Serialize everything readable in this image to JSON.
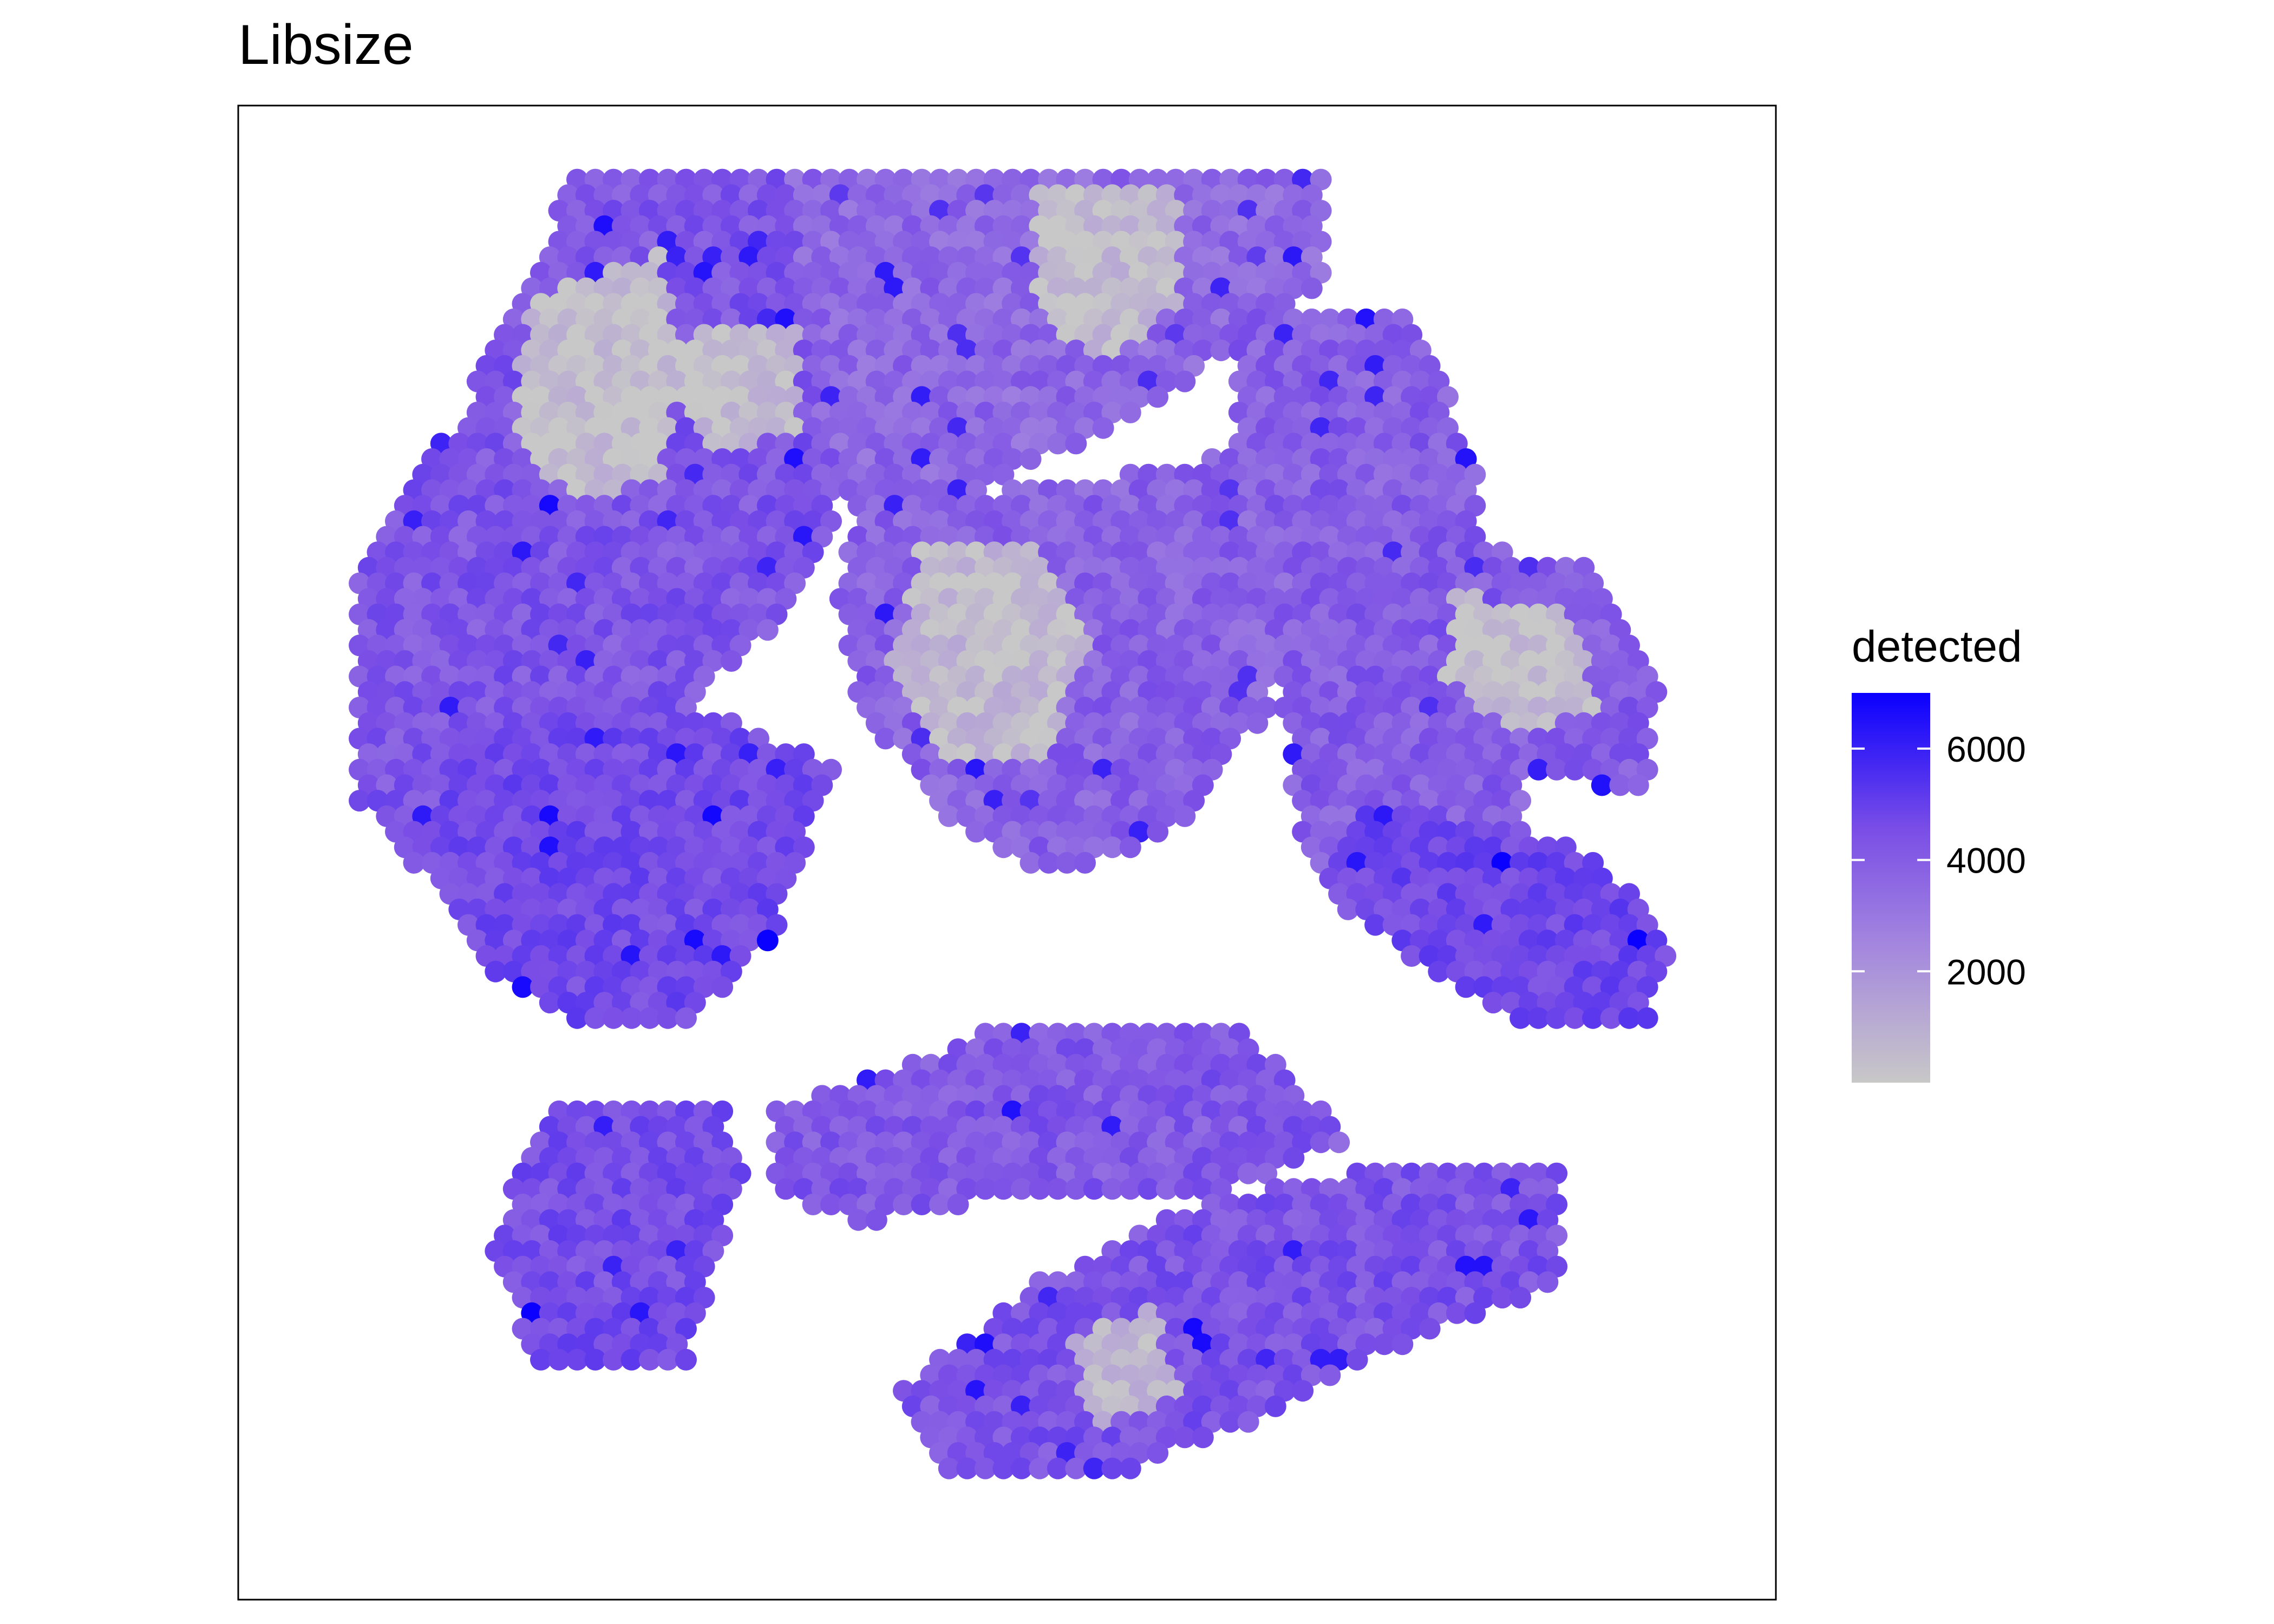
{
  "chart_data": {
    "type": "scatter",
    "title": "Libsize",
    "xlabel": "",
    "ylabel": "",
    "grid": false,
    "panel_border": true,
    "legend": {
      "title": "detected",
      "position": "right",
      "ticks": [
        2000,
        4000,
        6000
      ],
      "tick_labels": [
        "2000",
        "4000",
        "6000"
      ],
      "range": [
        0,
        7000
      ],
      "colors": {
        "low": "#c8c8c8",
        "high": "#0a00ff"
      }
    },
    "layout": "hexagonal spot array",
    "xlim": [
      0,
      100
    ],
    "ylim": [
      0,
      100
    ],
    "regions": [
      {
        "name": "top-left lobe",
        "polygon": [
          [
            20,
            3
          ],
          [
            35,
            3
          ],
          [
            38,
            10
          ],
          [
            40,
            22
          ],
          [
            36,
            32
          ],
          [
            28,
            40
          ],
          [
            22,
            48
          ],
          [
            16,
            52
          ],
          [
            10,
            52
          ],
          [
            5,
            46
          ],
          [
            5,
            30
          ],
          [
            12,
            20
          ],
          [
            16,
            12
          ]
        ],
        "level": 3800
      },
      {
        "name": "upper-left gray core",
        "polygon": [
          [
            21,
            10
          ],
          [
            26,
            8
          ],
          [
            28,
            16
          ],
          [
            26,
            24
          ],
          [
            20,
            26
          ],
          [
            16,
            20
          ],
          [
            17,
            12
          ]
        ],
        "level": 300
      },
      {
        "name": "upper-left inner gray",
        "polygon": [
          [
            29,
            13
          ],
          [
            36,
            13
          ],
          [
            36,
            21
          ],
          [
            30,
            22
          ],
          [
            27,
            18
          ]
        ],
        "level": 350
      },
      {
        "name": "top-center lobe",
        "polygon": [
          [
            35,
            3
          ],
          [
            72,
            3
          ],
          [
            72,
            10
          ],
          [
            64,
            16
          ],
          [
            58,
            20
          ],
          [
            50,
            24
          ],
          [
            44,
            27
          ],
          [
            40,
            27
          ],
          [
            37,
            20
          ],
          [
            36,
            10
          ]
        ],
        "level": 3200
      },
      {
        "name": "top-right gray",
        "polygon": [
          [
            52,
            4
          ],
          [
            62,
            4
          ],
          [
            62,
            12
          ],
          [
            56,
            16
          ],
          [
            52,
            12
          ]
        ],
        "level": 400
      },
      {
        "name": "right column",
        "polygon": [
          [
            66,
            12
          ],
          [
            78,
            12
          ],
          [
            82,
            22
          ],
          [
            84,
            34
          ],
          [
            86,
            48
          ],
          [
            80,
            55
          ],
          [
            74,
            55
          ],
          [
            70,
            48
          ],
          [
            68,
            34
          ],
          [
            66,
            22
          ]
        ],
        "level": 3500
      },
      {
        "name": "right cluster",
        "polygon": [
          [
            79,
            28
          ],
          [
            90,
            30
          ],
          [
            95,
            38
          ],
          [
            94,
            46
          ],
          [
            84,
            44
          ],
          [
            78,
            36
          ]
        ],
        "level": 3600
      },
      {
        "name": "right cluster gray core",
        "polygon": [
          [
            81,
            32
          ],
          [
            89,
            33
          ],
          [
            91,
            40
          ],
          [
            85,
            42
          ],
          [
            80,
            38
          ]
        ],
        "level": 350
      },
      {
        "name": "center lobe",
        "polygon": [
          [
            40,
            26
          ],
          [
            56,
            24
          ],
          [
            66,
            22
          ],
          [
            70,
            30
          ],
          [
            68,
            40
          ],
          [
            62,
            48
          ],
          [
            54,
            52
          ],
          [
            46,
            48
          ],
          [
            40,
            40
          ],
          [
            38,
            32
          ]
        ],
        "level": 3400
      },
      {
        "name": "center gray patches",
        "polygon": [
          [
            44,
            29
          ],
          [
            52,
            29
          ],
          [
            56,
            36
          ],
          [
            52,
            44
          ],
          [
            46,
            44
          ],
          [
            42,
            37
          ]
        ],
        "level": 500
      },
      {
        "name": "right-center lobe",
        "polygon": [
          [
            74,
            46
          ],
          [
            90,
            50
          ],
          [
            96,
            56
          ],
          [
            94,
            62
          ],
          [
            86,
            62
          ],
          [
            78,
            58
          ],
          [
            72,
            52
          ]
        ],
        "level": 4300
      },
      {
        "name": "left-center lobe",
        "polygon": [
          [
            12,
            40
          ],
          [
            30,
            40
          ],
          [
            38,
            44
          ],
          [
            34,
            56
          ],
          [
            28,
            62
          ],
          [
            20,
            62
          ],
          [
            14,
            58
          ],
          [
            10,
            50
          ]
        ],
        "level": 4200
      },
      {
        "name": "lower-left lobe",
        "polygon": [
          [
            18,
            68
          ],
          [
            30,
            67
          ],
          [
            32,
            72
          ],
          [
            28,
            86
          ],
          [
            18,
            86
          ],
          [
            14,
            78
          ]
        ],
        "level": 4100
      },
      {
        "name": "lower-middle lobe",
        "polygon": [
          [
            34,
            68
          ],
          [
            50,
            62
          ],
          [
            66,
            62
          ],
          [
            74,
            70
          ],
          [
            64,
            74
          ],
          [
            50,
            74
          ],
          [
            40,
            76
          ],
          [
            34,
            74
          ]
        ],
        "level": 3700
      },
      {
        "name": "lower-right lobe",
        "polygon": [
          [
            42,
            88
          ],
          [
            52,
            80
          ],
          [
            64,
            74
          ],
          [
            76,
            72
          ],
          [
            88,
            72
          ],
          [
            88,
            80
          ],
          [
            78,
            84
          ],
          [
            66,
            90
          ],
          [
            56,
            94
          ],
          [
            46,
            94
          ]
        ],
        "level": 3900
      },
      {
        "name": "lower gray patch",
        "polygon": [
          [
            54,
            84
          ],
          [
            60,
            82
          ],
          [
            62,
            88
          ],
          [
            56,
            90
          ]
        ],
        "level": 500
      }
    ]
  }
}
